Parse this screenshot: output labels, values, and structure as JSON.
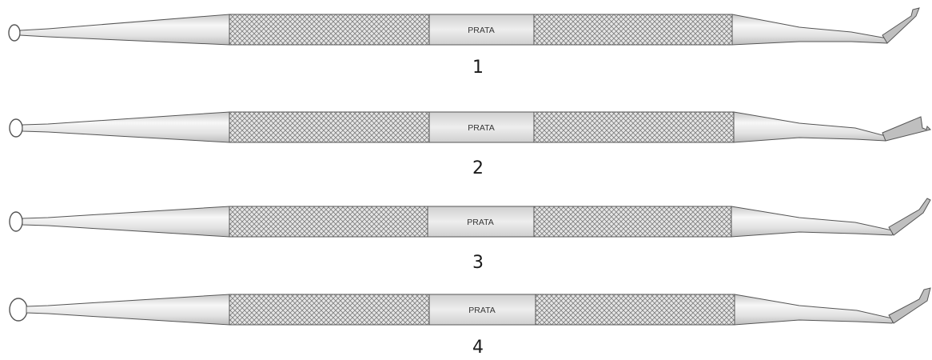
{
  "instruments": [
    {
      "number": "1",
      "brand": "PRATA"
    },
    {
      "number": "2",
      "brand": "PRATA"
    },
    {
      "number": "3",
      "brand": "PRATA"
    },
    {
      "number": "4",
      "brand": "PRATA"
    }
  ],
  "colors": {
    "outline": "#555555",
    "steel_light": "#f4f4f4",
    "steel_mid": "#dcdcdc",
    "knurl": "#8a8a8a"
  }
}
